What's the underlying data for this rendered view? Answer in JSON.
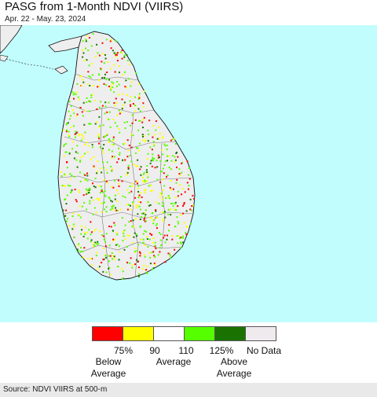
{
  "header": {
    "title": "PASG from 1-Month NDVI (VIIRS)",
    "date_range": "Apr. 22 - May. 23, 2024"
  },
  "map": {
    "colors": {
      "ocean": "#c2fdfd",
      "land": "#eeeeee",
      "outline": "#111111",
      "district": "#7a7a7a"
    }
  },
  "legend": {
    "swatches": [
      {
        "color": "#ff0000",
        "name": "below-75"
      },
      {
        "color": "#ffff00",
        "name": "75-90"
      },
      {
        "color": "#ffffff",
        "name": "90-110"
      },
      {
        "color": "#55ff00",
        "name": "110-125"
      },
      {
        "color": "#1a7300",
        "name": "above-125"
      },
      {
        "color": "#eeeaee",
        "name": "no-data"
      }
    ],
    "ticks": [
      "75%",
      "90",
      "110",
      "125%",
      "No Data"
    ],
    "categories": {
      "below_line1": "Below",
      "below_line2": "Average",
      "average": "Average",
      "above_line1": "Above",
      "above_line2": "Average"
    }
  },
  "footer": {
    "source": "Source: NDVI VIIRS at 500-m"
  }
}
